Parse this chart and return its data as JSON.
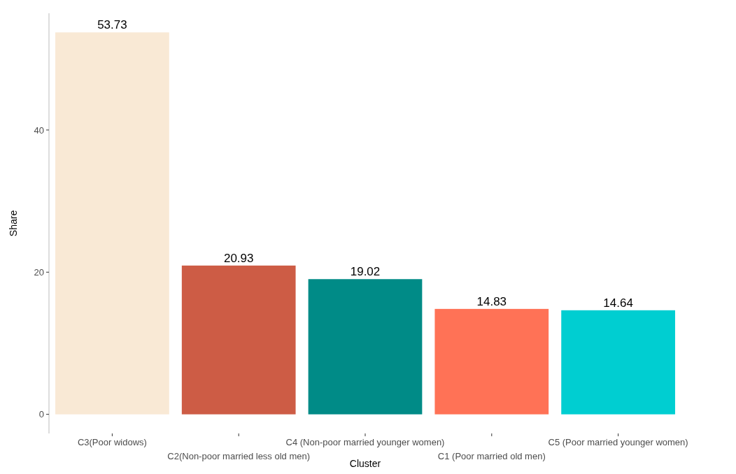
{
  "chart_data": {
    "type": "bar",
    "xlabel": "Cluster",
    "ylabel": "Share",
    "categories": [
      "C3(Poor widows)",
      "C2(Non-poor married less old men)",
      "C4 (Non-poor married younger women)",
      "C1 (Poor married old men)",
      "C5 (Poor married younger women)"
    ],
    "values": [
      53.73,
      20.93,
      19.02,
      14.83,
      14.64
    ],
    "colors": [
      "#f9e9d5",
      "#cd5c45",
      "#008b87",
      "#ff7256",
      "#00ced1"
    ],
    "ylim": [
      -2.69,
      56.42
    ],
    "yticks": [
      0,
      20,
      40
    ],
    "data_labels": true,
    "grid": false
  }
}
